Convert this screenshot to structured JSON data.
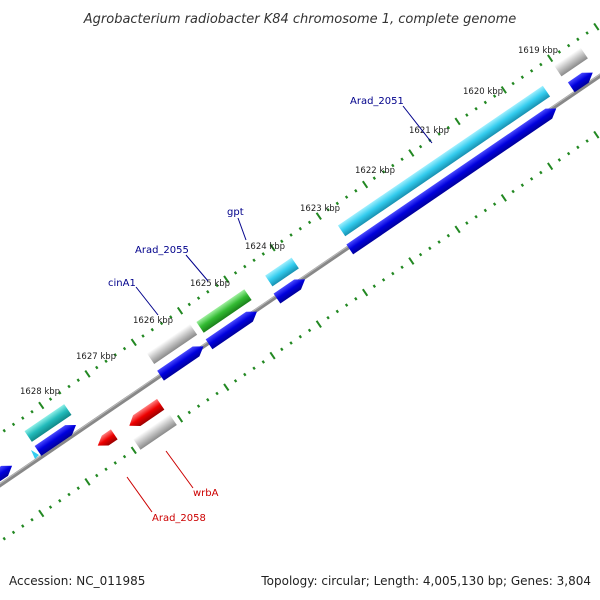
{
  "title": "Agrobacterium radiobacter K84 chromosome 1, complete genome",
  "footer": {
    "accession": "Accession: NC_011985",
    "summary": "Topology: circular; Length: 4,005,130 bp; Genes: 3,804"
  },
  "ticks": [
    {
      "label": "1619 kbp"
    },
    {
      "label": "1620 kbp"
    },
    {
      "label": "1621 kbp"
    },
    {
      "label": "1622 kbp"
    },
    {
      "label": "1623 kbp"
    },
    {
      "label": "1624 kbp"
    },
    {
      "label": "1625 kbp"
    },
    {
      "label": "1626 kbp"
    },
    {
      "label": "1627 kbp"
    },
    {
      "label": "1628 kbp"
    }
  ],
  "gene_labels": [
    {
      "text": "Arad_2051",
      "color": "#00008b"
    },
    {
      "text": "gpt",
      "color": "#00008b"
    },
    {
      "text": "Arad_2055",
      "color": "#00008b"
    },
    {
      "text": "cinA1",
      "color": "#00008b"
    },
    {
      "text": "wrbA",
      "color": "#cc0000"
    },
    {
      "text": "Arad_2058",
      "color": "#cc0000"
    }
  ],
  "colors": {
    "blue_cds": "#0000dd",
    "light_blue": "#33ccee",
    "teal": "#22bbbb",
    "gray_gene": "#bbbbbb",
    "green_gene": "#33bb33",
    "red_gene": "#ee0000",
    "tick_green": "#228822",
    "backbone": "#888888"
  }
}
